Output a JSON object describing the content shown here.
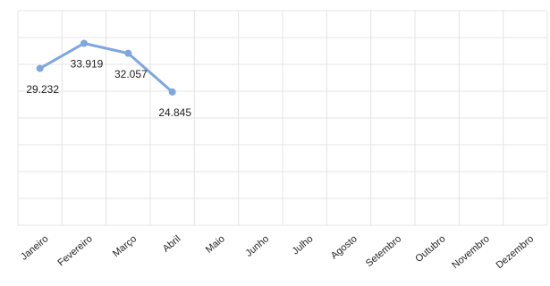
{
  "chart_data": {
    "type": "line",
    "categories": [
      "Janeiro",
      "Fevereiro",
      "Março",
      "Abril",
      "Maio",
      "Junho",
      "Julho",
      "Agosto",
      "Setembro",
      "Outubro",
      "Novembro",
      "Dezembro"
    ],
    "values": [
      29232,
      33919,
      32057,
      24845,
      null,
      null,
      null,
      null,
      null,
      null,
      null,
      null
    ],
    "value_labels": [
      "29.232",
      "33.919",
      "32.057",
      "24.845",
      null,
      null,
      null,
      null,
      null,
      null,
      null,
      null
    ],
    "color": "#7ea6e0",
    "ylim": [
      0,
      40000
    ],
    "yticks": [
      0,
      5000,
      10000,
      15000,
      20000,
      25000,
      30000,
      35000,
      40000
    ],
    "grid": true
  }
}
